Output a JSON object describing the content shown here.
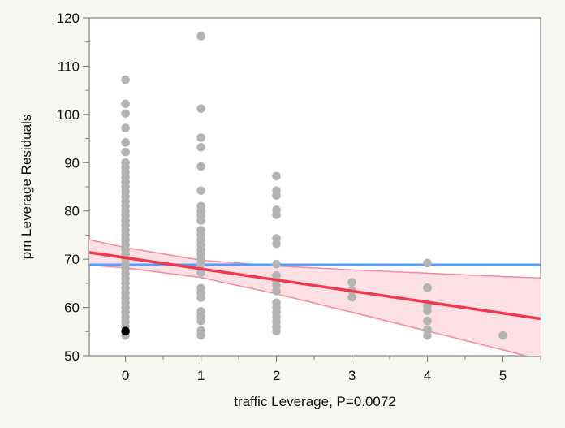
{
  "chart_data": {
    "type": "scatter",
    "xlabel": "traffic Leverage, P=0.0072",
    "ylabel": "pm Leverage Residuals",
    "xlim": [
      -0.48,
      5.5
    ],
    "ylim": [
      50,
      120
    ],
    "x_ticks": [
      "0",
      "1",
      "2",
      "3",
      "4",
      "5"
    ],
    "y_ticks": [
      "50",
      "60",
      "70",
      "80",
      "90",
      "100",
      "110",
      "120"
    ],
    "grid": false,
    "colors": {
      "points": "#b3b3b3",
      "highlight": "#000000",
      "fit": "#f0384f",
      "band_fill": "#fde0e4",
      "band_edge": "#f58a9a",
      "mean": "#5b9cf0"
    },
    "points": [
      [
        0,
        107.2
      ],
      [
        0,
        102.2
      ],
      [
        0,
        100.2
      ],
      [
        0,
        97.2
      ],
      [
        0,
        94.2
      ],
      [
        0,
        92.2
      ],
      [
        0,
        90
      ],
      [
        0,
        89
      ],
      [
        0,
        88
      ],
      [
        0,
        87
      ],
      [
        0,
        86
      ],
      [
        0,
        85
      ],
      [
        0,
        84
      ],
      [
        0,
        83
      ],
      [
        0,
        82
      ],
      [
        0,
        81
      ],
      [
        0,
        80
      ],
      [
        0,
        79
      ],
      [
        0,
        78
      ],
      [
        0,
        77
      ],
      [
        0,
        76
      ],
      [
        0,
        75
      ],
      [
        0,
        74
      ],
      [
        0,
        73
      ],
      [
        0,
        72
      ],
      [
        0,
        71
      ],
      [
        0,
        70
      ],
      [
        0,
        69
      ],
      [
        0,
        68
      ],
      [
        0,
        67
      ],
      [
        0,
        66
      ],
      [
        0,
        65
      ],
      [
        0,
        64
      ],
      [
        0,
        63
      ],
      [
        0,
        62
      ],
      [
        0,
        61
      ],
      [
        0,
        60
      ],
      [
        0,
        59
      ],
      [
        0,
        58
      ],
      [
        0,
        57
      ],
      [
        0,
        56
      ],
      [
        0,
        54.2
      ],
      [
        1,
        116.2
      ],
      [
        1,
        101.2
      ],
      [
        1,
        95.2
      ],
      [
        1,
        93.2
      ],
      [
        1,
        89.2
      ],
      [
        1,
        84.2
      ],
      [
        1,
        81
      ],
      [
        1,
        80
      ],
      [
        1,
        79
      ],
      [
        1,
        78
      ],
      [
        1,
        76
      ],
      [
        1,
        75
      ],
      [
        1,
        74
      ],
      [
        1,
        73
      ],
      [
        1,
        72
      ],
      [
        1,
        71
      ],
      [
        1,
        70
      ],
      [
        1,
        69
      ],
      [
        1,
        67.2
      ],
      [
        1,
        64
      ],
      [
        1,
        63
      ],
      [
        1,
        62
      ],
      [
        1,
        59.2
      ],
      [
        1,
        58.2
      ],
      [
        1,
        57.2
      ],
      [
        1,
        55.2
      ],
      [
        1,
        54.2
      ],
      [
        2,
        87.2
      ],
      [
        2,
        84.2
      ],
      [
        2,
        83.2
      ],
      [
        2,
        80.2
      ],
      [
        2,
        79.2
      ],
      [
        2,
        74.3
      ],
      [
        2,
        73.2
      ],
      [
        2,
        69
      ],
      [
        2,
        66.6
      ],
      [
        2,
        65.6
      ],
      [
        2,
        64.6
      ],
      [
        2,
        63.4
      ],
      [
        2,
        61
      ],
      [
        2,
        60
      ],
      [
        2,
        59
      ],
      [
        2,
        58
      ],
      [
        2,
        57
      ],
      [
        2,
        56
      ],
      [
        2,
        55.1
      ],
      [
        3,
        65.2
      ],
      [
        3,
        63.5
      ],
      [
        3,
        62.1
      ],
      [
        4,
        69.2
      ],
      [
        4,
        64.1
      ],
      [
        4,
        60.3
      ],
      [
        4,
        59.3
      ],
      [
        4,
        57.2
      ],
      [
        4,
        55.4
      ],
      [
        4,
        54.2
      ],
      [
        5,
        54.2
      ]
    ],
    "highlighted_point": [
      0,
      55.1
    ],
    "fit_line": {
      "intercept": 70.3,
      "slope": -2.3
    },
    "mean_line": 68.8,
    "confidence_band": [
      [
        -0.5,
        68.8,
        74.1
      ],
      [
        0,
        68.2,
        72.4
      ],
      [
        1,
        66.2,
        69.8
      ],
      [
        2,
        62.8,
        68.6
      ],
      [
        3,
        59.0,
        67.8
      ],
      [
        4,
        55.1,
        67.1
      ],
      [
        5,
        51.2,
        66.4
      ],
      [
        5.5,
        49.2,
        66.1
      ]
    ]
  }
}
